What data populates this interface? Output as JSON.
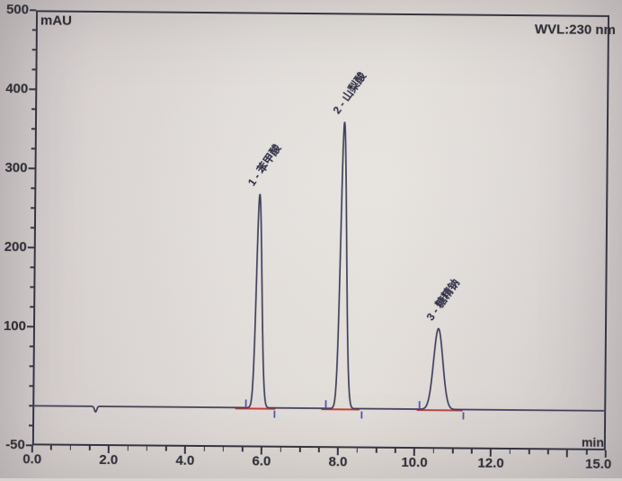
{
  "chart_data": {
    "type": "line",
    "instrument_annotation": "WVL:230 nm",
    "x_axis": {
      "label": "min",
      "min": 0,
      "max": 15,
      "major_step": 2,
      "minor_step": 0.5,
      "ticks": [
        {
          "value": 0,
          "label": "0.0"
        },
        {
          "value": 2,
          "label": "2.0"
        },
        {
          "value": 4,
          "label": "4.0"
        },
        {
          "value": 6,
          "label": "6.0"
        },
        {
          "value": 8,
          "label": "8.0"
        },
        {
          "value": 10,
          "label": "10.0"
        },
        {
          "value": 12,
          "label": "12.0"
        },
        {
          "value": 15,
          "label": "15.0"
        }
      ],
      "unlabeled_major_ticks": [
        14
      ]
    },
    "y_axis": {
      "label": "mAU",
      "min": -50,
      "max": 500,
      "minor_step": 25,
      "ticks": [
        {
          "value": 500,
          "label": "500"
        },
        {
          "value": 400,
          "label": "400"
        },
        {
          "value": 300,
          "label": "300"
        },
        {
          "value": 200,
          "label": "200"
        },
        {
          "value": 100,
          "label": "100"
        },
        {
          "value": -50,
          "label": "-50"
        }
      ]
    },
    "baseline_mau": 0,
    "peaks": [
      {
        "number": 1,
        "label": "1 - 苯甲酸",
        "rt_min": 5.9,
        "height_mau": 270,
        "sigma_min": 0.07
      },
      {
        "number": 2,
        "label": "2 - 山梨酸",
        "rt_min": 8.1,
        "height_mau": 362,
        "sigma_min": 0.075
      },
      {
        "number": 3,
        "label": "3 - 糖精钠",
        "rt_min": 10.6,
        "height_mau": 102,
        "sigma_min": 0.12
      }
    ],
    "baseline_artifacts": [
      {
        "rt_min": 1.65,
        "height_mau": -7,
        "sigma_min": 0.03
      }
    ],
    "integration": {
      "baseline_segments": [
        [
          5.3,
          6.35
        ],
        [
          7.55,
          8.55
        ],
        [
          10.05,
          11.25
        ]
      ],
      "peak_start_marks": [
        5.58,
        7.67,
        10.12
      ],
      "peak_end_marks": [
        6.33,
        8.61,
        11.27
      ]
    },
    "colors": {
      "trace": "#3d3d58",
      "axis": "#2f2f3d",
      "text": "#26262e",
      "integration_baseline": "#bf3f3c",
      "delimiter_marks": "#5353ae",
      "peak_label_text": "#2e2e46"
    },
    "legend_position": "none",
    "grid": false
  }
}
